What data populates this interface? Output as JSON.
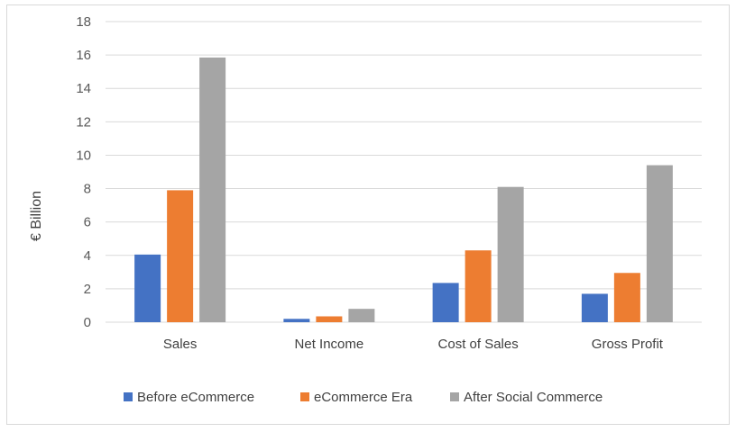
{
  "chart_data": {
    "type": "bar",
    "categories": [
      "Sales",
      "Net Income",
      "Cost of Sales",
      "Gross Profit"
    ],
    "series": [
      {
        "name": "Before eCommerce",
        "color": "#4472c4",
        "values": [
          4.05,
          0.2,
          2.35,
          1.7
        ]
      },
      {
        "name": "eCommerce Era",
        "color": "#ed7d31",
        "values": [
          7.9,
          0.35,
          4.3,
          2.95
        ]
      },
      {
        "name": "After Social Commerce",
        "color": "#a5a5a5",
        "values": [
          15.85,
          0.8,
          8.1,
          9.4
        ]
      }
    ],
    "ylabel": "€ Billion",
    "ylim": [
      0,
      18
    ],
    "yticks": [
      "0",
      "2",
      "4",
      "6",
      "8",
      "10",
      "12",
      "14",
      "16",
      "18"
    ],
    "grid": true,
    "legend": "bottom"
  }
}
